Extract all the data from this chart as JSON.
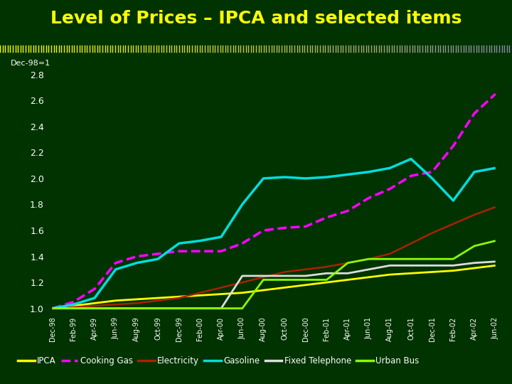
{
  "title": "Level of Prices – IPCA and selected items",
  "ylabel": "Dec-98=1",
  "bg_color": "#003300",
  "plot_bg_color": "#004400",
  "title_color": "#ffff00",
  "x_labels": [
    "Dec-98",
    "Feb-99",
    "Apr-99",
    "Jun-99",
    "Aug-99",
    "Oct-99",
    "Dec-99",
    "Feb-00",
    "Apr-00",
    "Jun-00",
    "Aug-00",
    "Oct-00",
    "Dec-00",
    "Feb-01",
    "Apr-01",
    "Jun-01",
    "Aug-01",
    "Oct-01",
    "Dec-01",
    "Feb-02",
    "Apr-02",
    "Jun-02"
  ],
  "series": {
    "IPCA": {
      "color": "#ffff00",
      "linewidth": 2.0,
      "dashed": false,
      "values": [
        1.0,
        1.02,
        1.04,
        1.06,
        1.07,
        1.08,
        1.09,
        1.1,
        1.11,
        1.12,
        1.14,
        1.16,
        1.18,
        1.2,
        1.22,
        1.24,
        1.26,
        1.27,
        1.28,
        1.29,
        1.31,
        1.33
      ]
    },
    "Cooking Gas": {
      "color": "#ff00ff",
      "linewidth": 2.5,
      "dashed": true,
      "values": [
        1.0,
        1.05,
        1.15,
        1.35,
        1.4,
        1.42,
        1.44,
        1.44,
        1.44,
        1.5,
        1.6,
        1.62,
        1.63,
        1.7,
        1.75,
        1.85,
        1.92,
        2.02,
        2.05,
        2.25,
        2.5,
        2.65
      ]
    },
    "Electricity": {
      "color": "#aa2200",
      "linewidth": 1.8,
      "dashed": false,
      "values": [
        1.0,
        1.01,
        1.02,
        1.03,
        1.04,
        1.06,
        1.08,
        1.12,
        1.16,
        1.2,
        1.24,
        1.28,
        1.3,
        1.32,
        1.35,
        1.38,
        1.42,
        1.5,
        1.58,
        1.65,
        1.72,
        1.78
      ]
    },
    "Gasoline": {
      "color": "#00dddd",
      "linewidth": 2.5,
      "dashed": false,
      "values": [
        1.0,
        1.03,
        1.08,
        1.3,
        1.35,
        1.38,
        1.5,
        1.52,
        1.55,
        1.8,
        2.0,
        2.01,
        2.0,
        2.01,
        2.03,
        2.05,
        2.08,
        2.15,
        2.0,
        1.83,
        2.05,
        2.08
      ]
    },
    "Fixed Telephone": {
      "color": "#dddddd",
      "linewidth": 2.0,
      "dashed": false,
      "values": [
        1.0,
        1.0,
        1.0,
        1.0,
        1.0,
        1.0,
        1.0,
        1.0,
        1.0,
        1.25,
        1.25,
        1.25,
        1.25,
        1.27,
        1.27,
        1.3,
        1.33,
        1.33,
        1.33,
        1.33,
        1.35,
        1.36
      ]
    },
    "Urban Bus": {
      "color": "#88ff00",
      "linewidth": 2.0,
      "dashed": false,
      "values": [
        1.0,
        1.0,
        1.0,
        1.0,
        1.0,
        1.0,
        1.0,
        1.0,
        1.0,
        1.0,
        1.22,
        1.22,
        1.22,
        1.22,
        1.35,
        1.38,
        1.38,
        1.38,
        1.38,
        1.38,
        1.48,
        1.52
      ]
    }
  },
  "ylim": [
    0.95,
    2.9
  ],
  "yticks": [
    1.0,
    1.2,
    1.4,
    1.6,
    1.8,
    2.0,
    2.2,
    2.4,
    2.6,
    2.8
  ],
  "ytick_labels": [
    "1.0",
    "1.2",
    "1.4",
    "1.6",
    "1.8",
    "2.0",
    "2.2",
    "2.4",
    "2.6",
    "2.8"
  ]
}
